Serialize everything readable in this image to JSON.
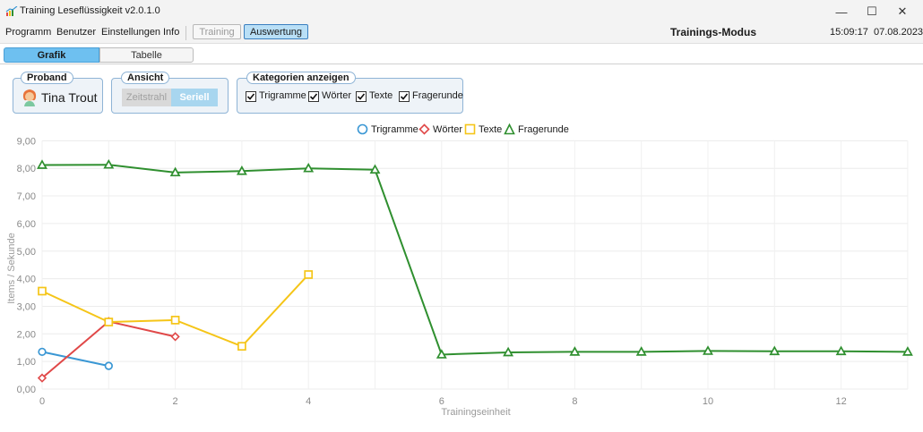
{
  "window": {
    "title": "Training Leseflüssigkeit v2.0.1.0",
    "minimize_symbol": "—",
    "maximize_symbol": "☐",
    "close_symbol": "✕"
  },
  "menu": {
    "items": [
      "Programm",
      "Benutzer",
      "Einstellungen",
      "Info"
    ],
    "mode_training": "Training",
    "mode_auswertung": "Auswertung",
    "mode_label": "Trainings-Modus",
    "time": "15:09:17",
    "date": "07.08.2023"
  },
  "tabs": {
    "grafik": "Grafik",
    "tabelle": "Tabelle",
    "active": "Grafik"
  },
  "proband": {
    "title": "Proband",
    "name": "Tina Trout"
  },
  "ansicht": {
    "title": "Ansicht",
    "zeitstrahl": "Zeitstrahl",
    "seriell": "Seriell",
    "selected": "Seriell"
  },
  "kategorien": {
    "title": "Kategorien anzeigen",
    "items": [
      {
        "label": "Trigramme",
        "checked": true
      },
      {
        "label": "Wörter",
        "checked": true
      },
      {
        "label": "Texte",
        "checked": true
      },
      {
        "label": "Fragerunde",
        "checked": true
      }
    ]
  },
  "colors": {
    "trigramme": "#3a97d4",
    "woerter": "#e04848",
    "texte": "#f5c518",
    "fragerunde": "#2f8f2f",
    "accent": "#6ec0f0"
  },
  "chart_data": {
    "type": "line",
    "xlabel": "Trainingseinheit",
    "ylabel": "Items / Sekunde",
    "xlim": [
      0,
      13
    ],
    "ylim": [
      0,
      9
    ],
    "xticks": [
      0,
      2,
      4,
      6,
      8,
      10,
      12
    ],
    "yticks": [
      "0,00",
      "1,00",
      "2,00",
      "3,00",
      "4,00",
      "5,00",
      "6,00",
      "7,00",
      "8,00",
      "9,00"
    ],
    "grid": true,
    "legend": "top-center",
    "series": [
      {
        "name": "Trigramme",
        "marker": "circle",
        "x": [
          0,
          1
        ],
        "y": [
          1.35,
          0.84
        ]
      },
      {
        "name": "Wörter",
        "marker": "diamond",
        "x": [
          0,
          1,
          2
        ],
        "y": [
          0.4,
          2.45,
          1.9
        ]
      },
      {
        "name": "Texte",
        "marker": "square",
        "x": [
          0,
          1,
          2,
          3,
          4
        ],
        "y": [
          3.55,
          2.43,
          2.5,
          1.55,
          4.15
        ]
      },
      {
        "name": "Fragerunde",
        "marker": "triangle",
        "x": [
          0,
          1,
          2,
          3,
          4,
          5,
          6,
          7,
          8,
          9,
          10,
          11,
          12,
          13
        ],
        "y": [
          8.12,
          8.13,
          7.85,
          7.9,
          8.0,
          7.95,
          1.25,
          1.33,
          1.35,
          1.35,
          1.38,
          1.37,
          1.37,
          1.35
        ]
      }
    ]
  }
}
